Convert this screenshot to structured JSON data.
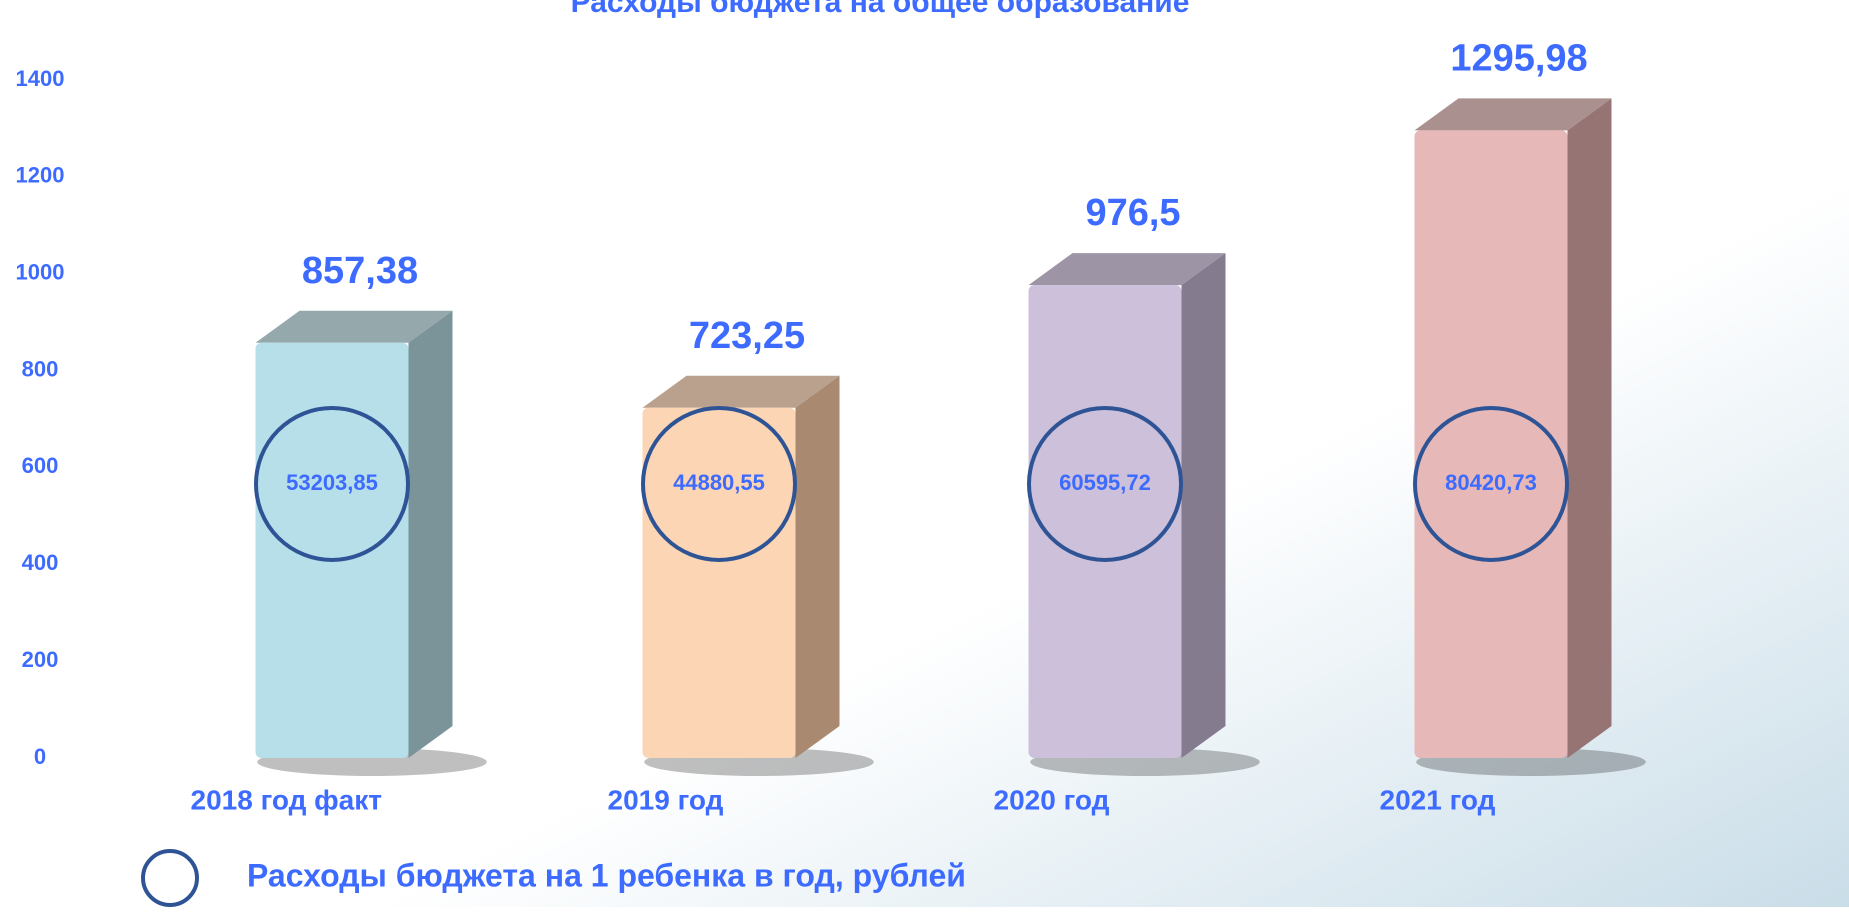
{
  "chart_data": {
    "type": "bar3d",
    "title": "Расходы бюджета на общее образование",
    "categories": [
      "2018 год факт",
      "2019 год",
      "2020 год",
      "2021 год"
    ],
    "values": [
      857.38,
      723.25,
      976.5,
      1295.98
    ],
    "value_labels": [
      "857,38",
      "723,25",
      "976,5",
      "1295,98"
    ],
    "colors": [
      "#b7dfe9",
      "#fcd5b4",
      "#ccc0da",
      "#e6b8b7"
    ],
    "side_colors": [
      "#7a9499",
      "#a98a70",
      "#857b8f",
      "#967474"
    ],
    "ylim": [
      0,
      1400
    ],
    "yticks": [
      0,
      200,
      400,
      600,
      800,
      1000,
      1200,
      1400
    ],
    "per_child": {
      "name": "Расходы бюджета на 1 ребенка в год, рублей",
      "values": [
        53203.85,
        44880.55,
        60595.72,
        80420.73
      ],
      "value_labels": [
        "53203,85",
        "44880,55",
        "60595,72",
        "80420,73"
      ]
    }
  }
}
